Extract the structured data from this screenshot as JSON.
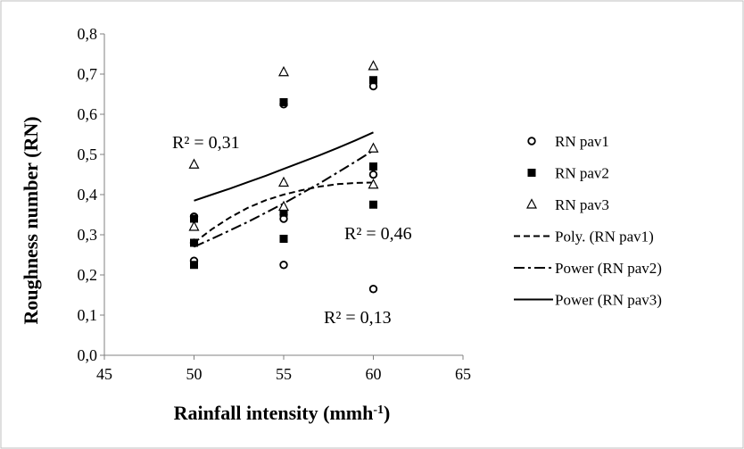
{
  "chart_data": {
    "type": "scatter",
    "xlabel": "Rainfall intensity (mmh",
    "xlabel_sup": "-1",
    "xlabel_close": ")",
    "ylabel": "Roughness number (RN)",
    "xlim": [
      45,
      65
    ],
    "ylim": [
      0,
      0.8
    ],
    "x_ticks": [
      45,
      50,
      55,
      60,
      65
    ],
    "x_tick_labels": [
      "45",
      "50",
      "55",
      "60",
      "65"
    ],
    "y_ticks": [
      0,
      0.1,
      0.2,
      0.3,
      0.4,
      0.5,
      0.6,
      0.7,
      0.8
    ],
    "y_tick_labels": [
      "0,0",
      "0,1",
      "0,2",
      "0,3",
      "0,4",
      "0,5",
      "0,6",
      "0,7",
      "0,8"
    ],
    "grid": false,
    "legend_position": "right",
    "series": [
      {
        "name": "RN pav1",
        "marker": "open-circle",
        "points": [
          [
            50,
            0.345
          ],
          [
            50,
            0.235
          ],
          [
            50,
            0.28
          ],
          [
            55,
            0.625
          ],
          [
            55,
            0.35
          ],
          [
            55,
            0.34
          ],
          [
            55,
            0.225
          ],
          [
            60,
            0.67
          ],
          [
            60,
            0.45
          ],
          [
            60,
            0.165
          ]
        ]
      },
      {
        "name": "RN pav2",
        "marker": "filled-square",
        "points": [
          [
            50,
            0.34
          ],
          [
            50,
            0.28
          ],
          [
            50,
            0.225
          ],
          [
            55,
            0.63
          ],
          [
            55,
            0.355
          ],
          [
            55,
            0.29
          ],
          [
            60,
            0.685
          ],
          [
            60,
            0.47
          ],
          [
            60,
            0.375
          ]
        ]
      },
      {
        "name": "RN pav3",
        "marker": "open-triangle",
        "points": [
          [
            50,
            0.475
          ],
          [
            50,
            0.32
          ],
          [
            55,
            0.705
          ],
          [
            55,
            0.43
          ],
          [
            55,
            0.37
          ],
          [
            60,
            0.72
          ],
          [
            60,
            0.515
          ],
          [
            60,
            0.425
          ]
        ]
      }
    ],
    "trendlines": [
      {
        "name": "Poly. (RN pav1)",
        "style": "dashed",
        "type": "polynomial",
        "points": [
          [
            50,
            0.28
          ],
          [
            51,
            0.314
          ],
          [
            52,
            0.343
          ],
          [
            53,
            0.367
          ],
          [
            54,
            0.386
          ],
          [
            55,
            0.4
          ],
          [
            56,
            0.411
          ],
          [
            57,
            0.42
          ],
          [
            58,
            0.426
          ],
          [
            59,
            0.429
          ],
          [
            60,
            0.43
          ]
        ]
      },
      {
        "name": "Power (RN pav2)",
        "style": "dash-dot",
        "type": "power",
        "points": [
          [
            50,
            0.27
          ],
          [
            51,
            0.29
          ],
          [
            52,
            0.311
          ],
          [
            53,
            0.332
          ],
          [
            54,
            0.355
          ],
          [
            55,
            0.378
          ],
          [
            56,
            0.403
          ],
          [
            57,
            0.428
          ],
          [
            58,
            0.455
          ],
          [
            59,
            0.482
          ],
          [
            60,
            0.51
          ]
        ]
      },
      {
        "name": "Power (RN pav3)",
        "style": "solid",
        "type": "power",
        "points": [
          [
            50,
            0.385
          ],
          [
            51,
            0.4
          ],
          [
            52,
            0.415
          ],
          [
            53,
            0.431
          ],
          [
            54,
            0.447
          ],
          [
            55,
            0.464
          ],
          [
            56,
            0.481
          ],
          [
            57,
            0.498
          ],
          [
            58,
            0.516
          ],
          [
            59,
            0.535
          ],
          [
            60,
            0.555
          ]
        ]
      }
    ],
    "annotations": [
      {
        "text": "R² = 0,31"
      },
      {
        "text": "R² = 0,46"
      },
      {
        "text": "R² = 0,13"
      }
    ]
  }
}
